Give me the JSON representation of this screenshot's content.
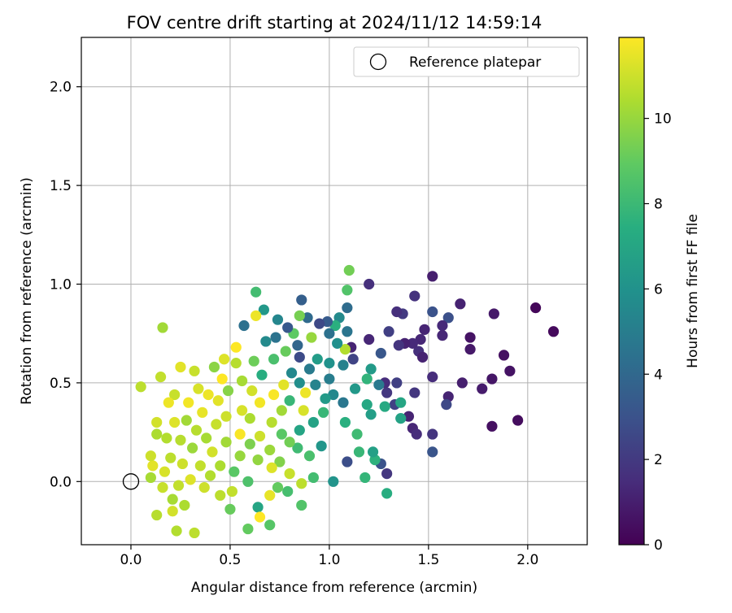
{
  "chart_data": {
    "type": "scatter",
    "title": "FOV centre drift starting at 2024/11/12 14:59:14",
    "xlabel": "Angular distance from reference (arcmin)",
    "ylabel": "Rotation from reference (arcmin)",
    "xlim": [
      -0.25,
      2.3
    ],
    "ylim": [
      -0.32,
      2.25
    ],
    "xticks": [
      "0.0",
      "0.5",
      "1.0",
      "1.5",
      "2.0"
    ],
    "yticks": [
      "0.0",
      "0.5",
      "1.0",
      "1.5",
      "2.0"
    ],
    "grid": true,
    "legend": {
      "placement": "top-right",
      "entries": [
        "Reference platepar"
      ]
    },
    "reference_point": {
      "x": 0.0,
      "y": 0.0
    },
    "colorbar": {
      "label": "Hours from first FF file",
      "range": [
        0,
        11.9
      ],
      "ticks": [
        "0",
        "2",
        "4",
        "6",
        "8",
        "10"
      ],
      "colormap": "viridis"
    },
    "series": [
      {
        "color_by": "hours",
        "points": [
          {
            "x": 2.13,
            "y": 0.76,
            "h": 0.3
          },
          {
            "x": 2.04,
            "y": 0.88,
            "h": 0.2
          },
          {
            "x": 1.95,
            "y": 0.31,
            "h": 0.4
          },
          {
            "x": 1.91,
            "y": 0.56,
            "h": 0.6
          },
          {
            "x": 1.88,
            "y": 0.64,
            "h": 0.5
          },
          {
            "x": 1.83,
            "y": 0.85,
            "h": 0.8
          },
          {
            "x": 1.82,
            "y": 0.52,
            "h": 0.7
          },
          {
            "x": 1.82,
            "y": 0.28,
            "h": 0.5
          },
          {
            "x": 1.77,
            "y": 0.47,
            "h": 0.9
          },
          {
            "x": 1.71,
            "y": 0.73,
            "h": 0.6
          },
          {
            "x": 1.71,
            "y": 0.67,
            "h": 0.8
          },
          {
            "x": 1.66,
            "y": 0.9,
            "h": 1.1
          },
          {
            "x": 1.67,
            "y": 0.5,
            "h": 1.0
          },
          {
            "x": 1.6,
            "y": 0.43,
            "h": 1.2
          },
          {
            "x": 1.59,
            "y": 0.39,
            "h": 2.6
          },
          {
            "x": 1.6,
            "y": 0.83,
            "h": 2.9
          },
          {
            "x": 1.57,
            "y": 0.79,
            "h": 1.4
          },
          {
            "x": 1.57,
            "y": 0.74,
            "h": 1.3
          },
          {
            "x": 1.52,
            "y": 1.04,
            "h": 1.0
          },
          {
            "x": 1.52,
            "y": 0.86,
            "h": 3.0
          },
          {
            "x": 1.52,
            "y": 0.53,
            "h": 1.5
          },
          {
            "x": 1.52,
            "y": 0.24,
            "h": 1.8
          },
          {
            "x": 1.52,
            "y": 0.15,
            "h": 3.1
          },
          {
            "x": 1.48,
            "y": 0.77,
            "h": 1.2
          },
          {
            "x": 1.46,
            "y": 0.72,
            "h": 1.3
          },
          {
            "x": 1.45,
            "y": 0.66,
            "h": 1.6
          },
          {
            "x": 1.47,
            "y": 0.63,
            "h": 1.1
          },
          {
            "x": 1.43,
            "y": 0.94,
            "h": 1.7
          },
          {
            "x": 1.43,
            "y": 0.45,
            "h": 1.9
          },
          {
            "x": 1.42,
            "y": 0.7,
            "h": 1.4
          },
          {
            "x": 1.4,
            "y": 0.33,
            "h": 1.2
          },
          {
            "x": 1.42,
            "y": 0.27,
            "h": 1.3
          },
          {
            "x": 1.44,
            "y": 0.24,
            "h": 1.5
          },
          {
            "x": 1.38,
            "y": 0.7,
            "h": 1.1
          },
          {
            "x": 1.37,
            "y": 0.85,
            "h": 2.0
          },
          {
            "x": 1.34,
            "y": 0.86,
            "h": 1.6
          },
          {
            "x": 1.35,
            "y": 0.69,
            "h": 1.8
          },
          {
            "x": 1.34,
            "y": 0.5,
            "h": 2.2
          },
          {
            "x": 1.33,
            "y": 0.39,
            "h": 2.3
          },
          {
            "x": 1.36,
            "y": 0.32,
            "h": 6.8
          },
          {
            "x": 1.36,
            "y": 0.4,
            "h": 7.0
          },
          {
            "x": 1.3,
            "y": 0.76,
            "h": 2.2
          },
          {
            "x": 1.29,
            "y": 0.45,
            "h": 1.9
          },
          {
            "x": 1.28,
            "y": 0.5,
            "h": 1.5
          },
          {
            "x": 1.26,
            "y": 0.65,
            "h": 3.2
          },
          {
            "x": 1.25,
            "y": 0.49,
            "h": 4.8
          },
          {
            "x": 1.2,
            "y": 1.0,
            "h": 1.6
          },
          {
            "x": 1.2,
            "y": 0.72,
            "h": 1.3
          },
          {
            "x": 1.28,
            "y": 0.38,
            "h": 7.2
          },
          {
            "x": 1.29,
            "y": 0.04,
            "h": 1.9
          },
          {
            "x": 1.29,
            "y": -0.06,
            "h": 7.4
          },
          {
            "x": 1.26,
            "y": 0.09,
            "h": 3.0
          },
          {
            "x": 1.23,
            "y": 0.11,
            "h": 7.6
          },
          {
            "x": 1.22,
            "y": 0.15,
            "h": 6.7
          },
          {
            "x": 1.21,
            "y": 0.34,
            "h": 6.6
          },
          {
            "x": 1.21,
            "y": 0.57,
            "h": 6.4
          },
          {
            "x": 1.19,
            "y": 0.39,
            "h": 7.1
          },
          {
            "x": 1.19,
            "y": 0.52,
            "h": 7.7
          },
          {
            "x": 1.18,
            "y": 0.02,
            "h": 7.8
          },
          {
            "x": 1.15,
            "y": 0.15,
            "h": 7.9
          },
          {
            "x": 1.14,
            "y": 0.24,
            "h": 8.1
          },
          {
            "x": 1.13,
            "y": 0.47,
            "h": 6.3
          },
          {
            "x": 1.12,
            "y": 0.62,
            "h": 2.4
          },
          {
            "x": 1.11,
            "y": 0.68,
            "h": 1.2
          },
          {
            "x": 1.1,
            "y": 1.07,
            "h": 9.3
          },
          {
            "x": 1.09,
            "y": 0.97,
            "h": 8.6
          },
          {
            "x": 1.09,
            "y": 0.88,
            "h": 4.2
          },
          {
            "x": 1.09,
            "y": 0.76,
            "h": 4.6
          },
          {
            "x": 1.08,
            "y": 0.67,
            "h": 10.5
          },
          {
            "x": 1.07,
            "y": 0.59,
            "h": 5.2
          },
          {
            "x": 1.07,
            "y": 0.4,
            "h": 4.7
          },
          {
            "x": 1.08,
            "y": 0.3,
            "h": 7.5
          },
          {
            "x": 1.09,
            "y": 0.1,
            "h": 2.8
          },
          {
            "x": 1.05,
            "y": 0.83,
            "h": 5.6
          },
          {
            "x": 1.04,
            "y": 0.7,
            "h": 5.9
          },
          {
            "x": 1.03,
            "y": 0.79,
            "h": 7.5
          },
          {
            "x": 1.02,
            "y": 0.44,
            "h": 5.5
          },
          {
            "x": 1.02,
            "y": 0.0,
            "h": 6.1
          },
          {
            "x": 1.0,
            "y": 0.75,
            "h": 4.4
          },
          {
            "x": 1.0,
            "y": 0.6,
            "h": 6.0
          },
          {
            "x": 1.0,
            "y": 0.52,
            "h": 5.0
          },
          {
            "x": 0.99,
            "y": 0.81,
            "h": 3.4
          },
          {
            "x": 0.98,
            "y": 0.42,
            "h": 6.4
          },
          {
            "x": 0.97,
            "y": 0.35,
            "h": 7.9
          },
          {
            "x": 0.96,
            "y": 0.18,
            "h": 6.2
          },
          {
            "x": 0.95,
            "y": 0.8,
            "h": 2.6
          },
          {
            "x": 0.94,
            "y": 0.62,
            "h": 6.5
          },
          {
            "x": 0.93,
            "y": 0.49,
            "h": 5.3
          },
          {
            "x": 0.92,
            "y": 0.3,
            "h": 6.8
          },
          {
            "x": 0.92,
            "y": 0.02,
            "h": 8.2
          },
          {
            "x": 0.91,
            "y": 0.73,
            "h": 10.0
          },
          {
            "x": 0.9,
            "y": 0.57,
            "h": 4.9
          },
          {
            "x": 0.9,
            "y": 0.13,
            "h": 8.4
          },
          {
            "x": 0.89,
            "y": 0.83,
            "h": 4.1
          },
          {
            "x": 0.88,
            "y": 0.45,
            "h": 11.6
          },
          {
            "x": 0.87,
            "y": 0.36,
            "h": 11.2
          },
          {
            "x": 0.86,
            "y": 0.92,
            "h": 3.6
          },
          {
            "x": 0.85,
            "y": 0.63,
            "h": 2.7
          },
          {
            "x": 0.85,
            "y": 0.5,
            "h": 5.8
          },
          {
            "x": 0.85,
            "y": 0.26,
            "h": 6.9
          },
          {
            "x": 0.84,
            "y": 0.17,
            "h": 8.1
          },
          {
            "x": 0.86,
            "y": -0.01,
            "h": 10.7
          },
          {
            "x": 0.86,
            "y": -0.12,
            "h": 8.6
          },
          {
            "x": 0.85,
            "y": 0.84,
            "h": 9.4
          },
          {
            "x": 0.84,
            "y": 0.69,
            "h": 3.9
          },
          {
            "x": 0.82,
            "y": 0.75,
            "h": 8.9
          },
          {
            "x": 0.81,
            "y": 0.55,
            "h": 5.5
          },
          {
            "x": 0.8,
            "y": 0.41,
            "h": 7.9
          },
          {
            "x": 0.8,
            "y": 0.2,
            "h": 9.3
          },
          {
            "x": 0.8,
            "y": 0.04,
            "h": 10.9
          },
          {
            "x": 0.79,
            "y": -0.05,
            "h": 8.3
          },
          {
            "x": 0.79,
            "y": 0.78,
            "h": 3.3
          },
          {
            "x": 0.78,
            "y": 0.66,
            "h": 9.1
          },
          {
            "x": 0.77,
            "y": 0.49,
            "h": 11.4
          },
          {
            "x": 0.76,
            "y": 0.36,
            "h": 10.2
          },
          {
            "x": 0.76,
            "y": 0.24,
            "h": 8.8
          },
          {
            "x": 0.75,
            "y": 0.1,
            "h": 9.6
          },
          {
            "x": 0.74,
            "y": -0.03,
            "h": 9.0
          },
          {
            "x": 0.74,
            "y": 0.82,
            "h": 5.4
          },
          {
            "x": 0.73,
            "y": 0.73,
            "h": 4.5
          },
          {
            "x": 0.72,
            "y": 0.62,
            "h": 8.4
          },
          {
            "x": 0.72,
            "y": 0.44,
            "h": 11.8
          },
          {
            "x": 0.71,
            "y": 0.3,
            "h": 10.6
          },
          {
            "x": 0.7,
            "y": 0.16,
            "h": 10.1
          },
          {
            "x": 0.71,
            "y": 0.07,
            "h": 11.3
          },
          {
            "x": 0.7,
            "y": -0.07,
            "h": 11.5
          },
          {
            "x": 0.7,
            "y": -0.22,
            "h": 8.7
          },
          {
            "x": 0.68,
            "y": 0.71,
            "h": 5.6
          },
          {
            "x": 0.67,
            "y": 0.87,
            "h": 6.3
          },
          {
            "x": 0.66,
            "y": 0.54,
            "h": 7.4
          },
          {
            "x": 0.65,
            "y": 0.4,
            "h": 11.7
          },
          {
            "x": 0.65,
            "y": 0.23,
            "h": 11.0
          },
          {
            "x": 0.64,
            "y": 0.11,
            "h": 9.9
          },
          {
            "x": 0.64,
            "y": -0.13,
            "h": 7.0
          },
          {
            "x": 0.65,
            "y": -0.18,
            "h": 11.9
          },
          {
            "x": 0.63,
            "y": 0.96,
            "h": 8.2
          },
          {
            "x": 0.63,
            "y": 0.84,
            "h": 11.6
          },
          {
            "x": 0.62,
            "y": 0.61,
            "h": 9.2
          },
          {
            "x": 0.61,
            "y": 0.46,
            "h": 11.1
          },
          {
            "x": 0.6,
            "y": 0.32,
            "h": 10.4
          },
          {
            "x": 0.6,
            "y": 0.19,
            "h": 9.5
          },
          {
            "x": 0.59,
            "y": 0.0,
            "h": 8.5
          },
          {
            "x": 0.59,
            "y": -0.24,
            "h": 9.0
          },
          {
            "x": 0.57,
            "y": 0.79,
            "h": 4.4
          },
          {
            "x": 0.56,
            "y": 0.51,
            "h": 10.3
          },
          {
            "x": 0.56,
            "y": 0.36,
            "h": 11.2
          },
          {
            "x": 0.55,
            "y": 0.24,
            "h": 11.8
          },
          {
            "x": 0.55,
            "y": 0.13,
            "h": 10.0
          },
          {
            "x": 0.53,
            "y": 0.68,
            "h": 11.9
          },
          {
            "x": 0.53,
            "y": 0.6,
            "h": 10.6
          },
          {
            "x": 0.52,
            "y": 0.05,
            "h": 8.8
          },
          {
            "x": 0.51,
            "y": -0.05,
            "h": 10.8
          },
          {
            "x": 0.5,
            "y": -0.14,
            "h": 9.1
          },
          {
            "x": 0.49,
            "y": 0.46,
            "h": 9.7
          },
          {
            "x": 0.48,
            "y": 0.33,
            "h": 11.0
          },
          {
            "x": 0.48,
            "y": 0.2,
            "h": 10.2
          },
          {
            "x": 0.47,
            "y": 0.62,
            "h": 11.3
          },
          {
            "x": 0.46,
            "y": 0.52,
            "h": 11.9
          },
          {
            "x": 0.45,
            "y": 0.08,
            "h": 10.4
          },
          {
            "x": 0.45,
            "y": -0.07,
            "h": 10.7
          },
          {
            "x": 0.44,
            "y": 0.41,
            "h": 11.4
          },
          {
            "x": 0.43,
            "y": 0.29,
            "h": 10.9
          },
          {
            "x": 0.42,
            "y": 0.58,
            "h": 9.8
          },
          {
            "x": 0.41,
            "y": 0.15,
            "h": 11.1
          },
          {
            "x": 0.4,
            "y": 0.03,
            "h": 10.5
          },
          {
            "x": 0.39,
            "y": 0.44,
            "h": 11.6
          },
          {
            "x": 0.38,
            "y": 0.22,
            "h": 10.3
          },
          {
            "x": 0.37,
            "y": -0.03,
            "h": 11.0
          },
          {
            "x": 0.36,
            "y": 0.35,
            "h": 11.5
          },
          {
            "x": 0.35,
            "y": 0.08,
            "h": 10.8
          },
          {
            "x": 0.34,
            "y": 0.47,
            "h": 11.2
          },
          {
            "x": 0.33,
            "y": 0.26,
            "h": 10.6
          },
          {
            "x": 0.32,
            "y": 0.56,
            "h": 10.9
          },
          {
            "x": 0.32,
            "y": -0.26,
            "h": 10.7
          },
          {
            "x": 0.31,
            "y": 0.17,
            "h": 10.1
          },
          {
            "x": 0.3,
            "y": 0.01,
            "h": 11.3
          },
          {
            "x": 0.29,
            "y": 0.4,
            "h": 11.7
          },
          {
            "x": 0.28,
            "y": 0.31,
            "h": 10.2
          },
          {
            "x": 0.27,
            "y": -0.12,
            "h": 10.4
          },
          {
            "x": 0.26,
            "y": 0.09,
            "h": 11.0
          },
          {
            "x": 0.25,
            "y": 0.58,
            "h": 11.4
          },
          {
            "x": 0.25,
            "y": 0.21,
            "h": 10.6
          },
          {
            "x": 0.24,
            "y": -0.02,
            "h": 10.8
          },
          {
            "x": 0.22,
            "y": 0.44,
            "h": 10.9
          },
          {
            "x": 0.22,
            "y": 0.3,
            "h": 11.3
          },
          {
            "x": 0.21,
            "y": -0.09,
            "h": 10.3
          },
          {
            "x": 0.21,
            "y": -0.15,
            "h": 11.1
          },
          {
            "x": 0.2,
            "y": 0.12,
            "h": 10.7
          },
          {
            "x": 0.19,
            "y": 0.4,
            "h": 11.6
          },
          {
            "x": 0.18,
            "y": 0.22,
            "h": 10.5
          },
          {
            "x": 0.17,
            "y": 0.05,
            "h": 11.2
          },
          {
            "x": 0.16,
            "y": 0.78,
            "h": 10.2
          },
          {
            "x": 0.16,
            "y": -0.03,
            "h": 10.9
          },
          {
            "x": 0.15,
            "y": 0.53,
            "h": 10.8
          },
          {
            "x": 0.13,
            "y": 0.24,
            "h": 10.4
          },
          {
            "x": 0.13,
            "y": 0.3,
            "h": 11.1
          },
          {
            "x": 0.13,
            "y": -0.17,
            "h": 10.6
          },
          {
            "x": 0.11,
            "y": 0.08,
            "h": 11.4
          },
          {
            "x": 0.1,
            "y": 0.13,
            "h": 11.0
          },
          {
            "x": 0.1,
            "y": 0.02,
            "h": 10.3
          },
          {
            "x": 0.05,
            "y": 0.48,
            "h": 10.7
          },
          {
            "x": 0.23,
            "y": -0.25,
            "h": 10.5
          }
        ]
      }
    ]
  }
}
